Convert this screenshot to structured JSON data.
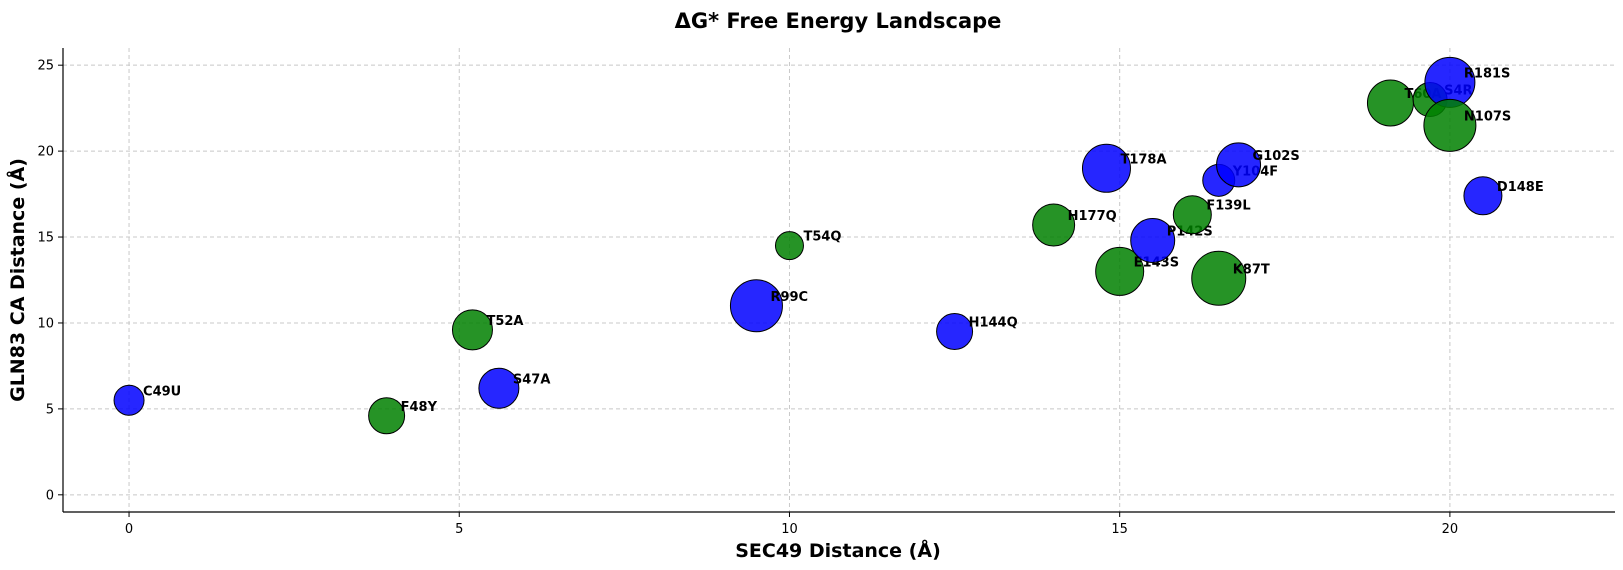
{
  "chart_data": {
    "type": "scatter",
    "title": "ΔG* Free Energy Landscape",
    "xlabel": "SEC49 Distance (Å)",
    "ylabel": "GLN83 CA Distance (Å)",
    "xlim": [
      -1,
      22.5
    ],
    "ylim": [
      -1,
      26
    ],
    "xticks": [
      0,
      5,
      10,
      15,
      20
    ],
    "yticks": [
      0,
      5,
      10,
      15,
      20,
      25
    ],
    "grid": true,
    "colors": {
      "blue": "#0000ff",
      "green": "#008000"
    },
    "points": [
      {
        "label": "C49U",
        "x": 0.0,
        "y": 5.5,
        "size": 15,
        "color": "blue"
      },
      {
        "label": "F48Y",
        "x": 3.9,
        "y": 4.6,
        "size": 18,
        "color": "green"
      },
      {
        "label": "T52A",
        "x": 5.2,
        "y": 9.6,
        "size": 20,
        "color": "green"
      },
      {
        "label": "S47A",
        "x": 5.6,
        "y": 6.2,
        "size": 20,
        "color": "blue"
      },
      {
        "label": "R99C",
        "x": 9.5,
        "y": 11.0,
        "size": 26,
        "color": "blue"
      },
      {
        "label": "T54Q",
        "x": 10.0,
        "y": 14.5,
        "size": 14,
        "color": "green"
      },
      {
        "label": "H144Q",
        "x": 12.5,
        "y": 9.5,
        "size": 18,
        "color": "blue"
      },
      {
        "label": "H177Q",
        "x": 14.0,
        "y": 15.7,
        "size": 21,
        "color": "green"
      },
      {
        "label": "T178A",
        "x": 14.8,
        "y": 19.0,
        "size": 24,
        "color": "blue"
      },
      {
        "label": "E143S",
        "x": 15.0,
        "y": 13.0,
        "size": 24,
        "color": "green"
      },
      {
        "label": "P142S",
        "x": 15.5,
        "y": 14.8,
        "size": 22,
        "color": "blue"
      },
      {
        "label": "F139L",
        "x": 16.1,
        "y": 16.3,
        "size": 19,
        "color": "green"
      },
      {
        "label": "K87T",
        "x": 16.5,
        "y": 12.6,
        "size": 27,
        "color": "green"
      },
      {
        "label": "Y104F",
        "x": 16.5,
        "y": 18.3,
        "size": 16,
        "color": "blue"
      },
      {
        "label": "G102S",
        "x": 16.8,
        "y": 19.2,
        "size": 22,
        "color": "blue"
      },
      {
        "label": "T60A",
        "x": 19.1,
        "y": 22.8,
        "size": 23,
        "color": "green"
      },
      {
        "label": "S4R",
        "x": 19.7,
        "y": 23.0,
        "size": 17,
        "color": "green"
      },
      {
        "label": "R181S",
        "x": 20.0,
        "y": 24.0,
        "size": 25,
        "color": "blue"
      },
      {
        "label": "N107S",
        "x": 20.0,
        "y": 21.5,
        "size": 26,
        "color": "green"
      },
      {
        "label": "D148E",
        "x": 20.5,
        "y": 17.4,
        "size": 19,
        "color": "blue"
      }
    ]
  }
}
